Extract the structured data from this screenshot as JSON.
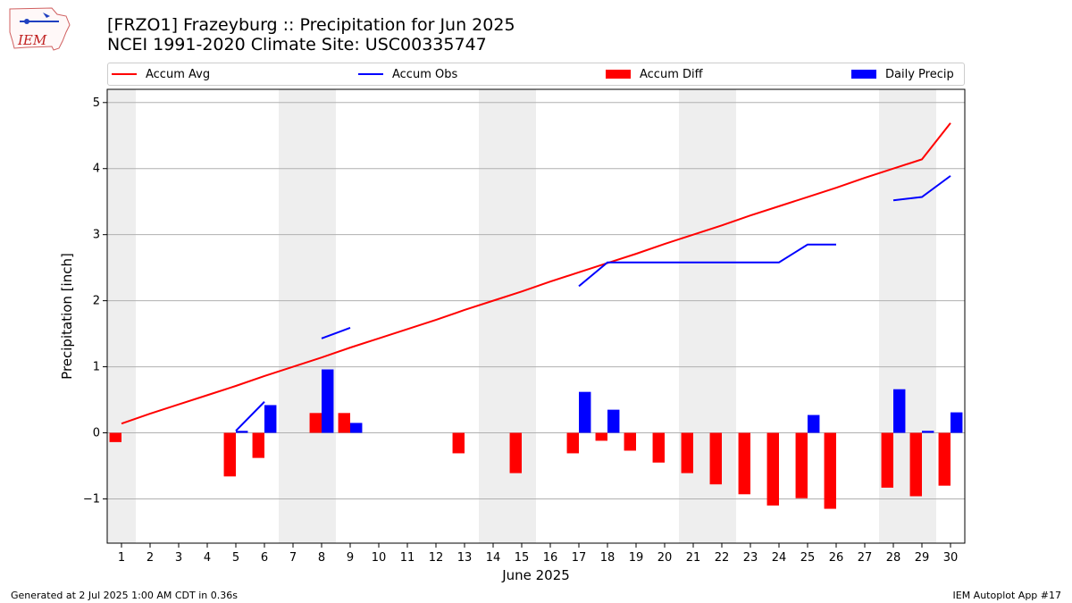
{
  "logo": {
    "text": "IEM"
  },
  "title": {
    "line1": "[FRZO1] Frazeyburg :: Precipitation for Jun 2025",
    "line2": "NCEI 1991-2020 Climate Site: USC00335747"
  },
  "legend": [
    {
      "label": "Accum Avg",
      "kind": "line",
      "color": "#ff0000"
    },
    {
      "label": "Accum Obs",
      "kind": "line",
      "color": "#0000ff"
    },
    {
      "label": "Accum Diff",
      "kind": "box",
      "color": "#ff0000"
    },
    {
      "label": "Daily Precip",
      "kind": "box",
      "color": "#0000ff"
    }
  ],
  "footer": {
    "left": "Generated at 2 Jul 2025 1:00 AM CDT in 0.36s",
    "right": "IEM Autoplot App #17"
  },
  "chart_data": {
    "type": "bar",
    "xlabel": "June 2025",
    "ylabel": "Precipitation [inch]",
    "ylim": [
      -1.67,
      5.2
    ],
    "xlim": [
      0.5,
      30.5
    ],
    "yticks": [
      -1,
      0,
      1,
      2,
      3,
      4,
      5
    ],
    "ytick_labels": [
      "−1",
      "0",
      "1",
      "2",
      "3",
      "4",
      "5"
    ],
    "grid": "horizontal",
    "legend_position": "top",
    "days": [
      1,
      2,
      3,
      4,
      5,
      6,
      7,
      8,
      9,
      10,
      11,
      12,
      13,
      14,
      15,
      16,
      17,
      18,
      19,
      20,
      21,
      22,
      23,
      24,
      25,
      26,
      27,
      28,
      29,
      30
    ],
    "weekend_shading": [
      [
        0.5,
        1.5
      ],
      [
        6.5,
        8.5
      ],
      [
        13.5,
        15.5
      ],
      [
        20.5,
        22.5
      ],
      [
        27.5,
        29.5
      ]
    ],
    "series": [
      {
        "name": "Accum Avg",
        "kind": "line",
        "color": "#ff0000",
        "values": [
          0.14,
          0.29,
          0.43,
          0.57,
          0.71,
          0.86,
          1.0,
          1.14,
          1.29,
          1.43,
          1.57,
          1.71,
          1.86,
          2.0,
          2.14,
          2.29,
          2.43,
          2.57,
          2.71,
          2.86,
          3.0,
          3.14,
          3.29,
          3.43,
          3.57,
          3.71,
          3.86,
          4.0,
          4.14,
          4.69
        ]
      },
      {
        "name": "Accum Obs",
        "kind": "line",
        "color": "#0000ff",
        "values": [
          null,
          null,
          null,
          null,
          0.03,
          0.47,
          null,
          1.43,
          1.59,
          null,
          null,
          null,
          null,
          null,
          null,
          null,
          2.22,
          2.58,
          2.58,
          2.58,
          2.58,
          2.58,
          2.58,
          2.58,
          2.85,
          2.85,
          null,
          3.52,
          3.57,
          3.89
        ]
      },
      {
        "name": "Accum Diff",
        "kind": "bar",
        "color": "#ff0000",
        "values": [
          -0.14,
          0,
          0,
          0,
          -0.66,
          -0.38,
          0,
          0.3,
          0.3,
          0,
          0,
          0,
          -0.31,
          0,
          -0.61,
          0,
          -0.31,
          -0.12,
          -0.27,
          -0.45,
          -0.61,
          -0.78,
          -0.93,
          -1.1,
          -0.99,
          -1.15,
          0,
          -0.83,
          -0.96,
          -0.8
        ]
      },
      {
        "name": "Daily Precip",
        "kind": "bar",
        "color": "#0000ff",
        "values": [
          0,
          0,
          0,
          0,
          0.03,
          0.42,
          0,
          0.96,
          0.15,
          0,
          0,
          0,
          0,
          0,
          0,
          0,
          0.62,
          0.35,
          0,
          0,
          0,
          0,
          0,
          0,
          0.27,
          0,
          0,
          0.66,
          0.03,
          0.31
        ]
      }
    ]
  }
}
